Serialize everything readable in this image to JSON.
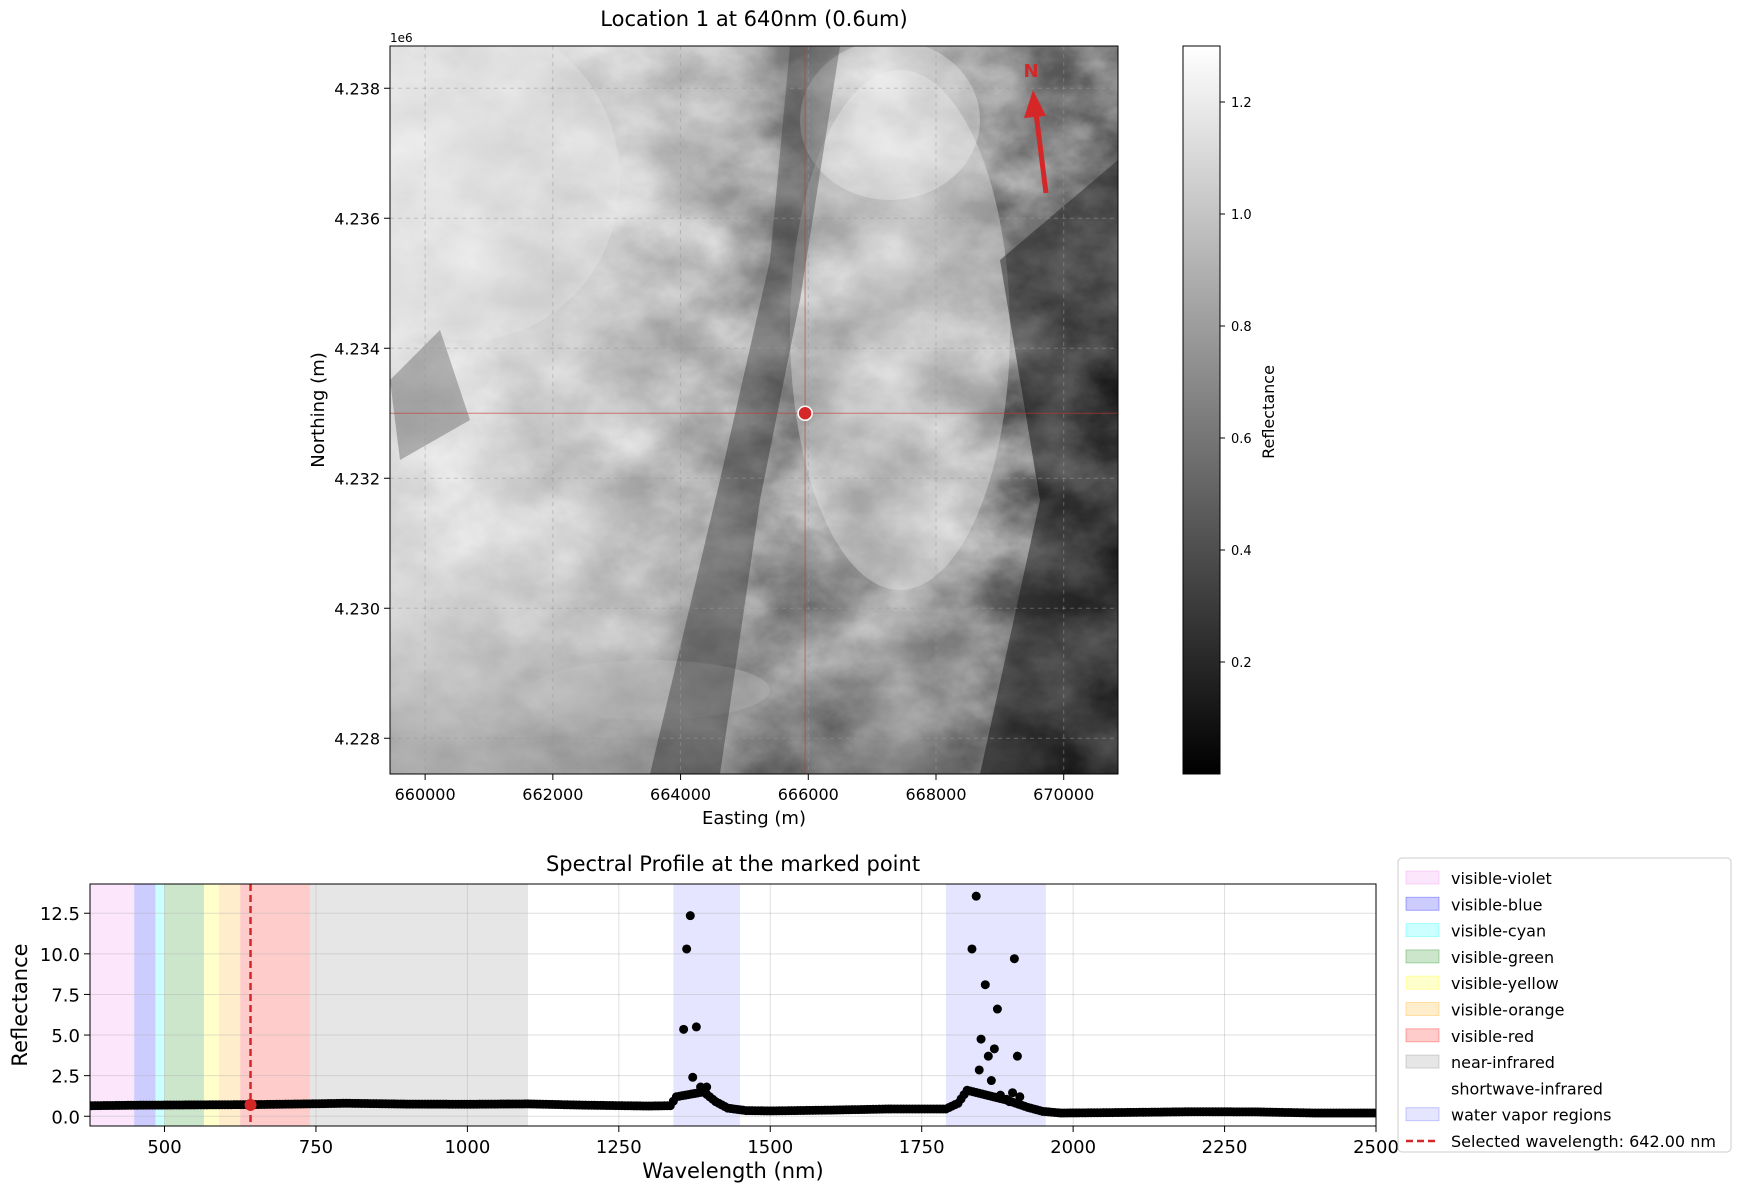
{
  "map_panel": {
    "title": "Location 1 at 640nm (0.6um)",
    "xlabel": "Easting (m)",
    "ylabel": "Northing (m)",
    "y_offset_label": "1e6",
    "xticks": [
      "660000",
      "662000",
      "664000",
      "666000",
      "668000",
      "670000"
    ],
    "yticks": [
      "4.238",
      "4.236",
      "4.234",
      "4.232",
      "4.230",
      "4.228"
    ],
    "north_label": "N",
    "colorbar": {
      "label": "Reflectance",
      "ticks": [
        "1.2",
        "1.0",
        "0.8",
        "0.6",
        "0.4",
        "0.2"
      ]
    }
  },
  "chart_data": [
    {
      "type": "heatmap",
      "title": "Location 1 at 640nm (0.6um)",
      "xlabel": "Easting (m)",
      "ylabel": "Northing (m)",
      "xlim": [
        659450,
        670850
      ],
      "ylim": [
        4227450,
        4238650
      ],
      "colormap": "gray",
      "color_range": [
        0.0,
        1.3
      ],
      "colorbar_label": "Reflectance",
      "marked_point": {
        "x": 665950,
        "y": 4233000
      },
      "grid": true
    },
    {
      "type": "scatter",
      "title": "Spectral Profile at the marked point",
      "xlabel": "Wavelength (nm)",
      "ylabel": "Reflectance",
      "xlim": [
        377,
        2500
      ],
      "ylim": [
        -0.6,
        14.3
      ],
      "xticks": [
        "500",
        "750",
        "1000",
        "1250",
        "1500",
        "1750",
        "2000",
        "2250",
        "2500"
      ],
      "yticks": [
        "0.0",
        "2.5",
        "5.0",
        "7.5",
        "10.0",
        "12.5"
      ],
      "grid": true,
      "legend_position": "right-outside",
      "regions": [
        {
          "name": "visible-violet",
          "start": 377,
          "end": 450,
          "color": "#ee82ee",
          "alpha": 0.2
        },
        {
          "name": "visible-blue",
          "start": 450,
          "end": 485,
          "color": "#0000ff",
          "alpha": 0.2
        },
        {
          "name": "visible-cyan",
          "start": 485,
          "end": 500,
          "color": "#00ffff",
          "alpha": 0.2
        },
        {
          "name": "visible-green",
          "start": 500,
          "end": 565,
          "color": "#008000",
          "alpha": 0.2
        },
        {
          "name": "visible-yellow",
          "start": 565,
          "end": 590,
          "color": "#ffff00",
          "alpha": 0.2
        },
        {
          "name": "visible-orange",
          "start": 590,
          "end": 625,
          "color": "#ffa500",
          "alpha": 0.2
        },
        {
          "name": "visible-red",
          "start": 625,
          "end": 740,
          "color": "#ff0000",
          "alpha": 0.2
        },
        {
          "name": "near-infrared",
          "start": 740,
          "end": 1100,
          "color": "#808080",
          "alpha": 0.2
        },
        {
          "name": "shortwave-infrared",
          "start": 1100,
          "end": 2500,
          "color": "#ffffff",
          "alpha": 0.2
        },
        {
          "name": "water vapor regions",
          "start": 1340,
          "end": 1450,
          "color": "#0000ff",
          "alpha": 0.1
        },
        {
          "name": "water vapor regions",
          "start": 1790,
          "end": 1955,
          "color": "#0000ff",
          "alpha": 0.1
        }
      ],
      "selected_wavelength": {
        "label": "Selected wavelength: 642.00 nm",
        "value": 642,
        "reflectance": 0.7
      },
      "baseline": [
        [
          380,
          0.65
        ],
        [
          450,
          0.68
        ],
        [
          550,
          0.7
        ],
        [
          650,
          0.72
        ],
        [
          750,
          0.77
        ],
        [
          800,
          0.8
        ],
        [
          900,
          0.75
        ],
        [
          1000,
          0.74
        ],
        [
          1100,
          0.76
        ],
        [
          1200,
          0.68
        ],
        [
          1300,
          0.63
        ],
        [
          1335,
          0.65
        ],
        [
          1345,
          1.2
        ],
        [
          1390,
          1.5
        ],
        [
          1410,
          0.9
        ],
        [
          1430,
          0.5
        ],
        [
          1460,
          0.35
        ],
        [
          1500,
          0.33
        ],
        [
          1600,
          0.38
        ],
        [
          1700,
          0.45
        ],
        [
          1790,
          0.45
        ],
        [
          1810,
          0.8
        ],
        [
          1825,
          1.6
        ],
        [
          1890,
          1.0
        ],
        [
          1925,
          0.55
        ],
        [
          1950,
          0.3
        ],
        [
          1980,
          0.2
        ],
        [
          2050,
          0.22
        ],
        [
          2200,
          0.28
        ],
        [
          2300,
          0.27
        ],
        [
          2400,
          0.2
        ],
        [
          2500,
          0.2
        ]
      ],
      "spikes": [
        {
          "x": 1357,
          "y": 5.35
        },
        {
          "x": 1362,
          "y": 10.3
        },
        {
          "x": 1368,
          "y": 12.35
        },
        {
          "x": 1372,
          "y": 2.4
        },
        {
          "x": 1378,
          "y": 5.5
        },
        {
          "x": 1385,
          "y": 1.8
        },
        {
          "x": 1395,
          "y": 1.8
        },
        {
          "x": 1833,
          "y": 10.3
        },
        {
          "x": 1840,
          "y": 13.55
        },
        {
          "x": 1845,
          "y": 2.85
        },
        {
          "x": 1848,
          "y": 4.75
        },
        {
          "x": 1855,
          "y": 8.1
        },
        {
          "x": 1860,
          "y": 3.7
        },
        {
          "x": 1865,
          "y": 2.2
        },
        {
          "x": 1870,
          "y": 4.15
        },
        {
          "x": 1875,
          "y": 6.6
        },
        {
          "x": 1880,
          "y": 1.3
        },
        {
          "x": 1890,
          "y": 1.05
        },
        {
          "x": 1895,
          "y": 0.9
        },
        {
          "x": 1900,
          "y": 1.45
        },
        {
          "x": 1903,
          "y": 9.7
        },
        {
          "x": 1908,
          "y": 3.7
        },
        {
          "x": 1912,
          "y": 1.2
        }
      ]
    }
  ],
  "profile_panel": {
    "title": "Spectral Profile at the marked point",
    "xlabel": "Wavelength (nm)",
    "ylabel": "Reflectance",
    "xticks": [
      "500",
      "750",
      "1000",
      "1250",
      "1500",
      "1750",
      "2000",
      "2250",
      "2500"
    ],
    "yticks": [
      "0.0",
      "2.5",
      "5.0",
      "7.5",
      "10.0",
      "12.5"
    ]
  },
  "legend": {
    "items": [
      {
        "label": "visible-violet",
        "color": "#ee82ee",
        "alpha": 0.2,
        "kind": "patch"
      },
      {
        "label": "visible-blue",
        "color": "#0000ff",
        "alpha": 0.2,
        "kind": "patch"
      },
      {
        "label": "visible-cyan",
        "color": "#00ffff",
        "alpha": 0.2,
        "kind": "patch"
      },
      {
        "label": "visible-green",
        "color": "#008000",
        "alpha": 0.2,
        "kind": "patch"
      },
      {
        "label": "visible-yellow",
        "color": "#ffff00",
        "alpha": 0.2,
        "kind": "patch"
      },
      {
        "label": "visible-orange",
        "color": "#ffa500",
        "alpha": 0.2,
        "kind": "patch"
      },
      {
        "label": "visible-red",
        "color": "#ff0000",
        "alpha": 0.2,
        "kind": "patch"
      },
      {
        "label": "near-infrared",
        "color": "#808080",
        "alpha": 0.2,
        "kind": "patch"
      },
      {
        "label": "shortwave-infrared",
        "color": "#ffffff",
        "alpha": 0.2,
        "kind": "patch"
      },
      {
        "label": "water vapor regions",
        "color": "#0000ff",
        "alpha": 0.1,
        "kind": "patch"
      },
      {
        "label": "Selected wavelength: 642.00 nm",
        "color": "#d62728",
        "alpha": 1,
        "kind": "dashed-line"
      }
    ]
  },
  "colors": {
    "marker": "#d62728",
    "crosshair": "#c0392b",
    "points": "#000000"
  }
}
